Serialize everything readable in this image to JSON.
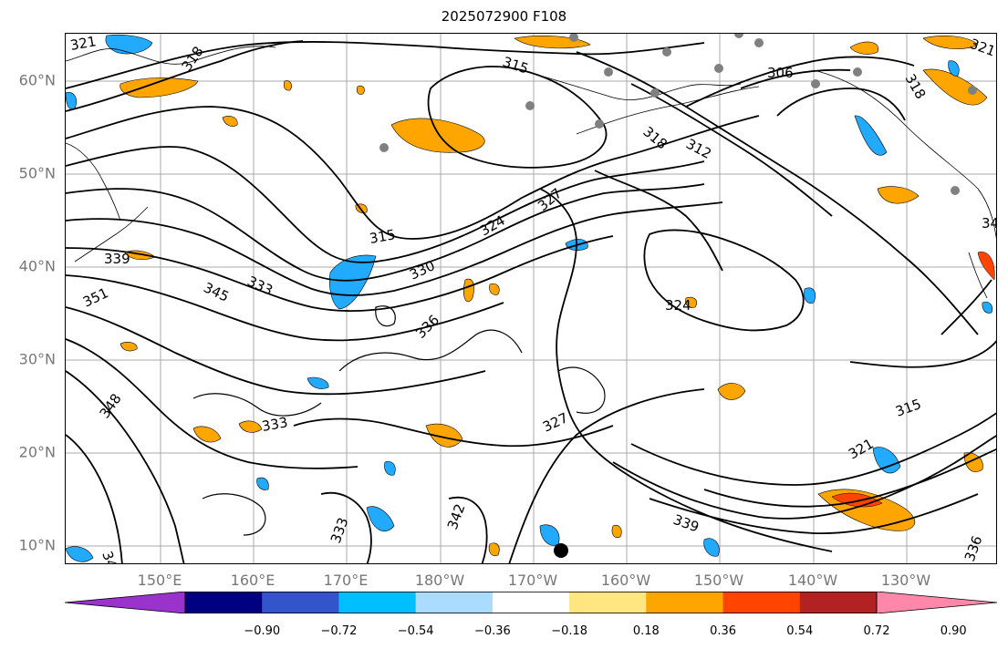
{
  "title": "2025072900 F108",
  "lat_labels": [
    "60°N",
    "50°N",
    "40°N",
    "30°N",
    "20°N",
    "10°N"
  ],
  "lon_labels": [
    "150°E",
    "160°E",
    "170°E",
    "180°W",
    "170°W",
    "160°W",
    "150°W",
    "140°W",
    "130°W"
  ],
  "contour_labels": [
    "321",
    "318",
    "315",
    "312",
    "306",
    "318",
    "324",
    "327",
    "324",
    "315",
    "339",
    "330",
    "333",
    "351",
    "345",
    "336",
    "324",
    "348",
    "333",
    "327",
    "315",
    "321",
    "339",
    "342",
    "333",
    "342",
    "336",
    "34"
  ],
  "colorbar": {
    "ticks": [
      "−0.90",
      "−0.72",
      "−0.54",
      "−0.36",
      "−0.18",
      "0.18",
      "0.36",
      "0.54",
      "0.72",
      "0.90"
    ],
    "colors": [
      "#9933cc",
      "#000080",
      "#3355cc",
      "#00bfff",
      "#aadcff",
      "#ffffff",
      "#ffe680",
      "#ffa500",
      "#ff4500",
      "#b22222",
      "#ff88aa"
    ]
  },
  "colors": {
    "warm_fill": "#ffa500",
    "cool_fill": "#22aaff",
    "contour": "#000000",
    "station": "#808080"
  }
}
